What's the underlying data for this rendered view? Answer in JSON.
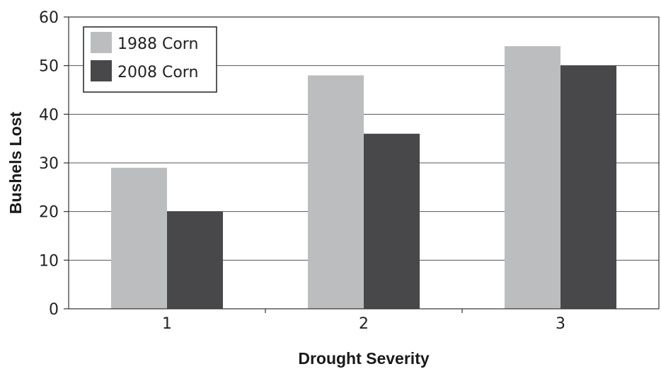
{
  "chart_data": {
    "type": "bar",
    "title": "",
    "xlabel": "Drought Severity",
    "ylabel": "Bushels Lost",
    "categories": [
      "1",
      "2",
      "3"
    ],
    "series": [
      {
        "name": "1988 Corn",
        "values": [
          29,
          48,
          54
        ],
        "color": "#bcbdbf"
      },
      {
        "name": "2008 Corn",
        "values": [
          20,
          36,
          50
        ],
        "color": "#48484a"
      }
    ],
    "ylim": [
      0,
      60
    ],
    "y_ticks": [
      "0",
      "10",
      "20",
      "30",
      "40",
      "50",
      "60"
    ],
    "grid": true,
    "legend_position": "top-left"
  }
}
